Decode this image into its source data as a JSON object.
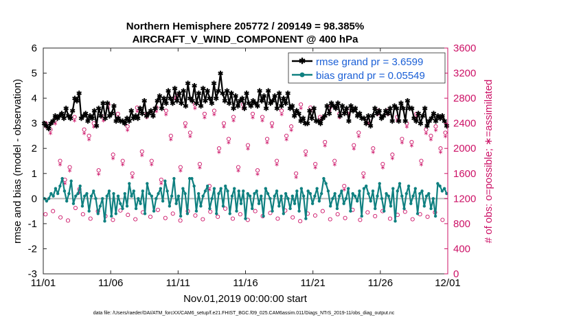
{
  "chart_data": {
    "type": "line",
    "title_line1": "Northern Hemisphere 205772 / 209149 = 98.385%",
    "title_line2": "AIRCRAFT_V_WIND_COMPONENT @ 400 hPa",
    "xlabel": "Nov.01,2019 00:00:00 start",
    "ylabel_left": "rmse and bias (model - observation)",
    "ylabel_right": "# of obs: o=possible; ∗=assimilated",
    "footer": "data file: /Users/raeder/DAI/ATM_forcXX/CAM6_setup/f.e21.FHIST_BGC.f09_025.CAM6assim.011/Diags_NTrS_2019-11/obs_diag_output.nc",
    "x_ticks": [
      "11/01",
      "11/06",
      "11/11",
      "11/16",
      "11/21",
      "11/26",
      "12/01"
    ],
    "x_tick_days": [
      0,
      5,
      10,
      15,
      20,
      25,
      30
    ],
    "xlim": [
      0,
      30
    ],
    "ylim_left": [
      -3,
      6
    ],
    "ylim_right": [
      0,
      3600
    ],
    "yticks_left": [
      "-3",
      "-2",
      "-1",
      "0",
      "1",
      "2",
      "3",
      "4",
      "5",
      "6"
    ],
    "yticks_right": [
      "0",
      "400",
      "800",
      "1200",
      "1600",
      "2000",
      "2400",
      "2800",
      "3200",
      "3600"
    ],
    "zero_line": 0,
    "legend": [
      {
        "label": "rmse grand pr = 3.6599",
        "series": "rmse"
      },
      {
        "label": "bias grand pr = 0.05549",
        "series": "bias"
      }
    ],
    "series": [
      {
        "name": "rmse",
        "color": "#000000",
        "values": [
          3.0,
          2.9,
          2.8,
          3.0,
          3.1,
          3.3,
          3.2,
          3.3,
          3.4,
          3.2,
          3.6,
          3.3,
          3.2,
          3.5,
          4.0,
          3.9,
          4.2,
          3.2,
          3.3,
          3.4,
          3.1,
          3.3,
          3.2,
          3.5,
          2.9,
          3.6,
          3.3,
          3.8,
          3.2,
          3.8,
          3.3,
          3.4,
          3.7,
          3.1,
          3.2,
          3.1,
          3.1,
          3.0,
          3.2,
          3.1,
          3.5,
          3.2,
          3.3,
          3.2,
          3.6,
          3.4,
          3.9,
          3.3,
          3.4,
          3.5,
          3.3,
          3.6,
          3.9,
          4.1,
          3.6,
          4.0,
          3.8,
          4.3,
          4.0,
          3.8,
          4.4,
          3.9,
          4.2,
          3.8,
          4.3,
          3.7,
          4.6,
          4.0,
          3.9,
          4.5,
          3.8,
          4.2,
          3.7,
          4.4,
          3.9,
          4.3,
          4.0,
          3.8,
          4.6,
          4.0,
          4.3,
          5.0,
          4.2,
          3.9,
          4.3,
          3.8,
          4.2,
          3.6,
          4.1,
          3.7,
          3.9,
          4.0,
          3.6,
          4.2,
          3.8,
          3.7,
          3.9,
          3.8,
          3.7,
          4.3,
          3.9,
          4.1,
          3.6,
          4.3,
          3.8,
          3.9,
          4.1,
          3.6,
          4.2,
          3.7,
          4.0,
          3.8,
          4.2,
          3.6,
          3.7,
          3.3,
          3.5,
          3.4,
          3.1,
          3.2,
          3.0,
          3.0,
          3.5,
          3.2,
          3.6,
          3.1,
          3.1,
          3.0,
          3.2,
          3.3,
          3.7,
          3.4,
          3.8,
          3.7,
          3.6,
          3.8,
          3.3,
          3.7,
          3.4,
          3.6,
          3.1,
          3.7,
          3.5,
          3.6,
          3.3,
          3.4,
          3.2,
          3.2,
          3.0,
          3.3,
          2.9,
          3.3,
          3.6,
          3.4,
          3.5,
          3.2,
          3.3,
          3.5,
          3.4,
          3.6,
          3.1,
          3.7,
          3.6,
          3.1,
          3.8,
          3.6,
          3.1,
          3.9,
          3.6,
          3.6,
          3.2,
          3.1,
          3.4,
          3.0,
          3.3,
          3.6,
          2.9,
          3.1,
          3.2,
          3.4,
          3.1,
          3.3,
          3.2,
          3.3,
          3.1,
          2.9
        ]
      },
      {
        "name": "bias",
        "color": "#0f8080",
        "values": [
          0.0,
          -0.1,
          0.0,
          0.2,
          0.1,
          0.4,
          0.2,
          0.5,
          0.8,
          0.3,
          -0.1,
          0.2,
          0.7,
          -0.2,
          0.1,
          0.2,
          0.5,
          -0.3,
          0.1,
          0.2,
          -0.5,
          0.1,
          0.3,
          0.0,
          -0.6,
          -0.3,
          0.0,
          -0.9,
          0.1,
          0.3,
          -0.7,
          0.2,
          -0.6,
          0.1,
          -0.2,
          -0.4,
          0.2,
          -0.3,
          0.6,
          0.1,
          0.3,
          -0.4,
          0.0,
          -0.2,
          0.3,
          -0.6,
          0.6,
          0.2,
          0.1,
          -0.5,
          0.0,
          0.2,
          0.4,
          -0.1,
          0.7,
          0.3,
          -0.3,
          0.1,
          0.8,
          -0.2,
          0.1,
          -0.7,
          0.4,
          0.2,
          -0.6,
          0.8,
          0.8,
          0.5,
          -0.5,
          0.2,
          -0.3,
          0.1,
          0.3,
          0.5,
          -0.4,
          0.0,
          0.4,
          -0.6,
          0.2,
          0.4,
          -0.3,
          0.5,
          0.3,
          -0.6,
          0.1,
          0.4,
          -0.5,
          0.3,
          -0.2,
          0.3,
          -0.8,
          0.2,
          0.1,
          -0.4,
          0.2,
          0.3,
          -0.2,
          0.1,
          -0.7,
          0.4,
          0.2,
          0.0,
          -0.5,
          0.1,
          0.3,
          -0.3,
          0.1,
          -0.6,
          0.2,
          0.0,
          -0.4,
          0.1,
          -0.2,
          0.3,
          -0.5,
          0.4,
          0.1,
          -0.8,
          0.3,
          0.2,
          -0.2,
          0.1,
          0.4,
          -0.1,
          0.2,
          0.8,
          0.6,
          0.3,
          -0.3,
          0.0,
          0.2,
          -0.4,
          0.1,
          0.3,
          -0.2,
          0.0,
          0.4,
          -0.5,
          0.2,
          0.1,
          -0.1,
          0.3,
          -0.7,
          0.4,
          0.5,
          0.2,
          -0.1,
          0.3,
          -0.4,
          0.1,
          0.6,
          0.0,
          -0.5,
          0.2,
          0.1,
          -0.3,
          0.4,
          -0.9,
          0.3,
          0.6,
          0.1,
          -0.4,
          0.2,
          0.5,
          -0.2,
          0.1,
          0.4,
          -0.6,
          0.2,
          0.3,
          -0.3,
          0.1,
          0.2,
          -0.4,
          0.0,
          -0.7,
          0.6,
          0.5,
          0.3,
          0.4,
          0.2
        ]
      }
    ],
    "obs_possible": {
      "color": "#cc1166",
      "values": [
        2400,
        2300,
        2450,
        1800,
        1500,
        1700,
        2500,
        1350,
        2300,
        2200,
        2400,
        1650,
        2500,
        2700,
        1900,
        2550,
        1800,
        2350,
        1600,
        2650,
        1950,
        2550,
        1800,
        2650,
        1500,
        2600,
        2200,
        2850,
        1700,
        2400,
        2250,
        2700,
        1750,
        2550,
        1400,
        2600,
        2000,
        2400,
        2150,
        2500,
        1700,
        2700,
        2050,
        2550,
        1650,
        2500,
        2150,
        2400,
        1800,
        2600,
        2200,
        2350,
        1600,
        2700,
        1950,
        2650,
        1750,
        2500,
        2100,
        2650,
        1800,
        2550,
        1400,
        2600,
        2050,
        2250,
        1600,
        2450,
        2000,
        2600,
        1750,
        2600,
        1900,
        2500,
        2150,
        2400,
        2100,
        2550,
        1800,
        2300,
        2200,
        2350,
        2000,
        2250
      ]
    },
    "obs_assimilated": {
      "color": "#cc1166",
      "values": [
        2350,
        2250,
        2400,
        1750,
        1450,
        1650,
        2450,
        1300,
        2250,
        2150,
        2350,
        1600,
        2450,
        2650,
        1850,
        2500,
        1750,
        2300,
        1550,
        2600,
        1900,
        2500,
        1750,
        2600,
        1450,
        2550,
        2150,
        2800,
        1650,
        2350,
        2200,
        2650,
        1700,
        2500,
        1350,
        2550,
        1950,
        2350,
        2100,
        2450,
        1650,
        2650,
        2000,
        2500,
        1600,
        2450,
        2100,
        2350,
        1750,
        2550,
        2150,
        2300,
        1550,
        2650,
        1900,
        2600,
        1700,
        2450,
        2050,
        2600,
        1750,
        2500,
        1350,
        2550,
        2000,
        2200,
        1550,
        2400,
        1950,
        2550,
        1700,
        2550,
        1850,
        2450,
        2100,
        2350,
        2050,
        2500,
        1750,
        2250,
        2150,
        2300,
        1950,
        2200
      ]
    },
    "obs_low_possible": {
      "values": [
        950,
        1000,
        900,
        850,
        1050,
        950,
        880,
        1000,
        920,
        860,
        1010,
        940,
        870,
        980,
        910,
        1020,
        890,
        960,
        850,
        1000,
        930,
        870,
        990,
        910,
        1040,
        880,
        950,
        860,
        1000,
        920,
        970,
        880,
        1010,
        900,
        840,
        960,
        930,
        1000,
        870,
        950,
        890,
        1020,
        860,
        980,
        920,
        1000,
        880,
        940,
        990,
        870,
        950,
        910,
        980,
        860
      ]
    }
  }
}
